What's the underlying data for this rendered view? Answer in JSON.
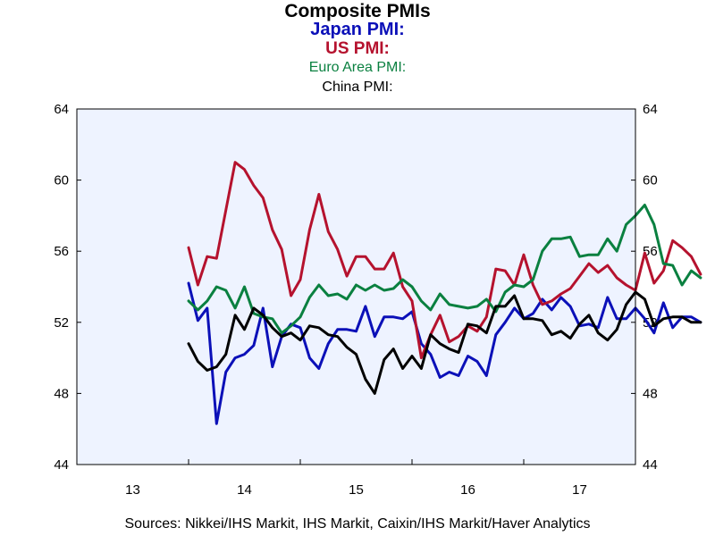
{
  "chart_data": {
    "type": "line",
    "title": "Composite PMIs",
    "source": "Sources:  Nikkei/IHS Markit, IHS Markit, Caixin/IHS Markit/Haver Analytics",
    "ylim": [
      44,
      64
    ],
    "yticks": [
      "44",
      "48",
      "52",
      "56",
      "60",
      "64"
    ],
    "xlim": [
      2013.0,
      2018.0
    ],
    "xticks": [
      "13",
      "14",
      "15",
      "16",
      "17"
    ],
    "grid": false,
    "legend": "title-stack",
    "background": "#eef3ff",
    "series": [
      {
        "name": "Japan PMI:",
        "color": "#0b10b8",
        "x": [
          "2014-01",
          "2014-02",
          "2014-03",
          "2014-04",
          "2014-05",
          "2014-06",
          "2014-07",
          "2014-08",
          "2014-09",
          "2014-10",
          "2014-11",
          "2014-12",
          "2015-01",
          "2015-02",
          "2015-03",
          "2015-04",
          "2015-05",
          "2015-06",
          "2015-07",
          "2015-08",
          "2015-09",
          "2015-10",
          "2015-11",
          "2015-12",
          "2016-01",
          "2016-02",
          "2016-03",
          "2016-04",
          "2016-05",
          "2016-06",
          "2016-07",
          "2016-08",
          "2016-09",
          "2016-10",
          "2016-11",
          "2016-12",
          "2017-01",
          "2017-02",
          "2017-03",
          "2017-04",
          "2017-05",
          "2017-06",
          "2017-07",
          "2017-08",
          "2017-09",
          "2017-10",
          "2017-11",
          "2017-12",
          "2018-01",
          "2018-02",
          "2018-03",
          "2018-04",
          "2018-05",
          "2018-06",
          "2018-07",
          "2018-08"
        ],
        "values": [
          54.2,
          52.1,
          52.8,
          46.3,
          49.2,
          50.0,
          50.2,
          50.7,
          52.8,
          49.5,
          51.2,
          51.9,
          51.7,
          50.0,
          49.4,
          50.8,
          51.6,
          51.6,
          51.5,
          52.9,
          51.2,
          52.3,
          52.3,
          52.2,
          52.6,
          50.8,
          50.2,
          48.9,
          49.2,
          49.0,
          50.1,
          49.8,
          49.0,
          51.3,
          52.0,
          52.8,
          52.2,
          52.5,
          53.3,
          52.7,
          53.4,
          52.9,
          51.8,
          51.9,
          51.7,
          53.4,
          52.2,
          52.2,
          52.8,
          52.2,
          51.4,
          53.1,
          51.7,
          52.3,
          52.3,
          52.0
        ],
        "note": ""
      },
      {
        "name": "US PMI:",
        "color": "#b5122e",
        "x": [
          "2014-01",
          "2014-02",
          "2014-03",
          "2014-04",
          "2014-05",
          "2014-06",
          "2014-07",
          "2014-08",
          "2014-09",
          "2014-10",
          "2014-11",
          "2014-12",
          "2015-01",
          "2015-02",
          "2015-03",
          "2015-04",
          "2015-05",
          "2015-06",
          "2015-07",
          "2015-08",
          "2015-09",
          "2015-10",
          "2015-11",
          "2015-12",
          "2016-01",
          "2016-02",
          "2016-03",
          "2016-04",
          "2016-05",
          "2016-06",
          "2016-07",
          "2016-08",
          "2016-09",
          "2016-10",
          "2016-11",
          "2016-12",
          "2017-01",
          "2017-02",
          "2017-03",
          "2017-04",
          "2017-05",
          "2017-06",
          "2017-07",
          "2017-08",
          "2017-09",
          "2017-10",
          "2017-11",
          "2017-12",
          "2018-01",
          "2018-02",
          "2018-03",
          "2018-04",
          "2018-05",
          "2018-06",
          "2018-07",
          "2018-08"
        ],
        "values": [
          56.2,
          54.1,
          55.7,
          55.6,
          58.3,
          61.0,
          60.6,
          59.7,
          59.0,
          57.2,
          56.1,
          53.5,
          54.4,
          57.2,
          59.2,
          57.1,
          56.1,
          54.6,
          55.7,
          55.7,
          55.0,
          55.0,
          55.9,
          54.0,
          53.2,
          50.0,
          51.3,
          52.4,
          50.9,
          51.2,
          51.8,
          51.5,
          52.3,
          55.0,
          54.9,
          54.1,
          55.8,
          54.1,
          53.0,
          53.2,
          53.6,
          53.9,
          54.6,
          55.3,
          54.8,
          55.2,
          54.5,
          54.1,
          53.8,
          55.9,
          54.2,
          54.9,
          56.6,
          56.2,
          55.7,
          54.7
        ],
        "note": ""
      },
      {
        "name": "Euro Area PMI:",
        "color": "#0a8040",
        "x": [
          "2014-01",
          "2014-02",
          "2014-03",
          "2014-04",
          "2014-05",
          "2014-06",
          "2014-07",
          "2014-08",
          "2014-09",
          "2014-10",
          "2014-11",
          "2014-12",
          "2015-01",
          "2015-02",
          "2015-03",
          "2015-04",
          "2015-05",
          "2015-06",
          "2015-07",
          "2015-08",
          "2015-09",
          "2015-10",
          "2015-11",
          "2015-12",
          "2016-01",
          "2016-02",
          "2016-03",
          "2016-04",
          "2016-05",
          "2016-06",
          "2016-07",
          "2016-08",
          "2016-09",
          "2016-10",
          "2016-11",
          "2016-12",
          "2017-01",
          "2017-02",
          "2017-03",
          "2017-04",
          "2017-05",
          "2017-06",
          "2017-07",
          "2017-08",
          "2017-09",
          "2017-10",
          "2017-11",
          "2017-12",
          "2018-01",
          "2018-02",
          "2018-03",
          "2018-04",
          "2018-05",
          "2018-06",
          "2018-07",
          "2018-08"
        ],
        "values": [
          53.2,
          52.7,
          53.2,
          54.0,
          53.8,
          52.8,
          54.0,
          52.5,
          52.3,
          52.2,
          51.4,
          51.8,
          52.3,
          53.4,
          54.1,
          53.5,
          53.6,
          53.3,
          54.1,
          53.8,
          54.1,
          53.8,
          53.9,
          54.4,
          54.0,
          53.2,
          52.7,
          53.6,
          53.0,
          52.9,
          52.8,
          52.9,
          53.3,
          52.6,
          53.7,
          54.1,
          54.0,
          54.4,
          56.0,
          56.7,
          56.7,
          56.8,
          55.7,
          55.8,
          55.8,
          56.7,
          56.0,
          57.5,
          58.0,
          58.6,
          57.5,
          55.3,
          55.2,
          54.1,
          54.9,
          54.5
        ],
        "note": ""
      },
      {
        "name": "China PMI:",
        "color": "#000000",
        "x": [
          "2014-01",
          "2014-02",
          "2014-03",
          "2014-04",
          "2014-05",
          "2014-06",
          "2014-07",
          "2014-08",
          "2014-09",
          "2014-10",
          "2014-11",
          "2014-12",
          "2015-01",
          "2015-02",
          "2015-03",
          "2015-04",
          "2015-05",
          "2015-06",
          "2015-07",
          "2015-08",
          "2015-09",
          "2015-10",
          "2015-11",
          "2015-12",
          "2016-01",
          "2016-02",
          "2016-03",
          "2016-04",
          "2016-05",
          "2016-06",
          "2016-07",
          "2016-08",
          "2016-09",
          "2016-10",
          "2016-11",
          "2016-12",
          "2017-01",
          "2017-02",
          "2017-03",
          "2017-04",
          "2017-05",
          "2017-06",
          "2017-07",
          "2017-08",
          "2017-09",
          "2017-10",
          "2017-11",
          "2017-12",
          "2018-01",
          "2018-02",
          "2018-03",
          "2018-04",
          "2018-05",
          "2018-06",
          "2018-07",
          "2018-08"
        ],
        "values": [
          50.8,
          49.8,
          49.3,
          49.5,
          50.2,
          52.4,
          51.6,
          52.8,
          52.4,
          51.7,
          51.2,
          51.4,
          51.0,
          51.8,
          51.7,
          51.3,
          51.2,
          50.6,
          50.2,
          48.8,
          48.0,
          49.9,
          50.5,
          49.4,
          50.1,
          49.4,
          51.3,
          50.8,
          50.5,
          50.3,
          51.9,
          51.8,
          51.4,
          52.9,
          52.9,
          53.5,
          52.2,
          52.2,
          52.1,
          51.3,
          51.5,
          51.1,
          51.9,
          52.4,
          51.4,
          51.0,
          51.6,
          53.0,
          53.7,
          53.3,
          51.8,
          52.2,
          52.3,
          52.3,
          52.0,
          52.0
        ],
        "note": ""
      }
    ]
  }
}
